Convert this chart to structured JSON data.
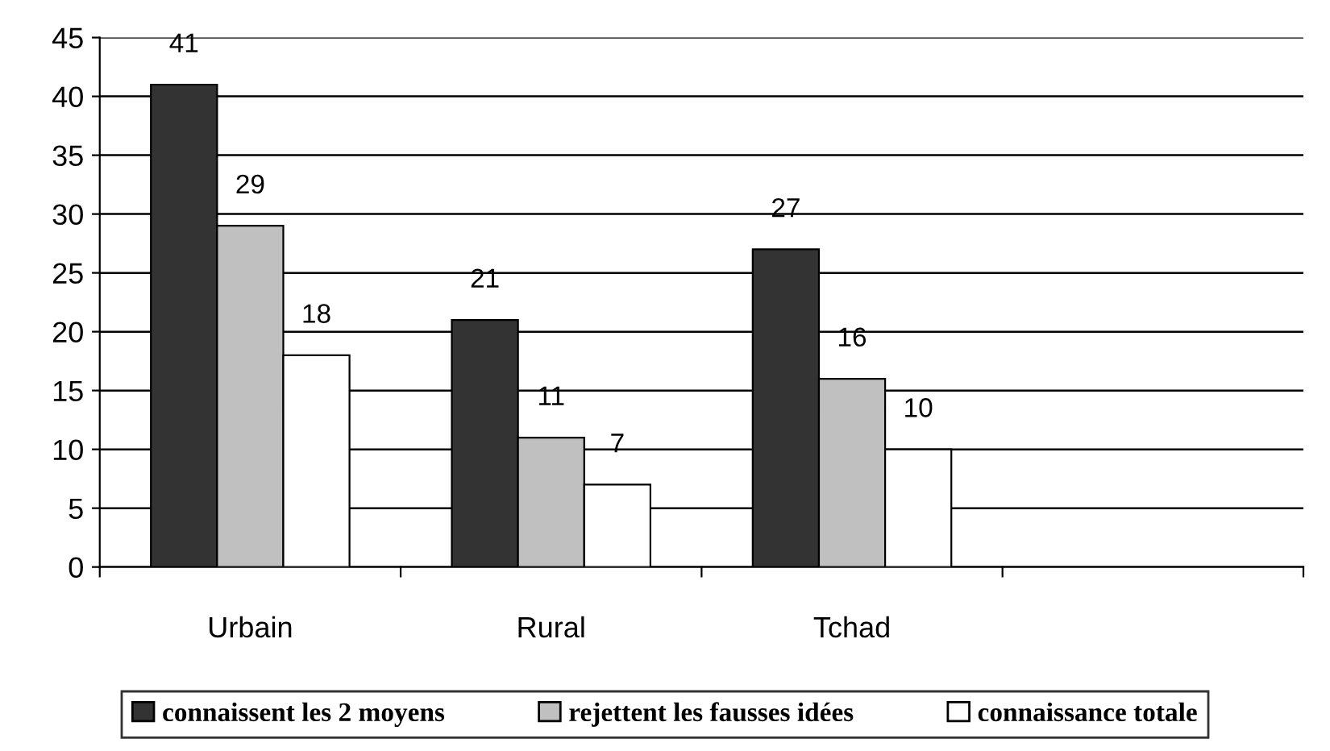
{
  "chart_data": {
    "type": "bar",
    "categories": [
      "Urbain",
      "Rural",
      "Tchad",
      null
    ],
    "series": [
      {
        "name": "connaissent les 2 moyens",
        "color": "#333333",
        "values": [
          41,
          21,
          27,
          null
        ]
      },
      {
        "name": "rejettent les fausses idées",
        "color": "#c0c0c0",
        "values": [
          29,
          11,
          16,
          null
        ]
      },
      {
        "name": "connaissance totale",
        "color": "#ffffff",
        "values": [
          18,
          7,
          10,
          null
        ]
      }
    ],
    "ylim": [
      0,
      45
    ],
    "yticks": [
      0,
      5,
      10,
      15,
      20,
      25,
      30,
      35,
      40,
      45
    ],
    "grid": "y",
    "legend": "bottom",
    "data_labels": true
  }
}
